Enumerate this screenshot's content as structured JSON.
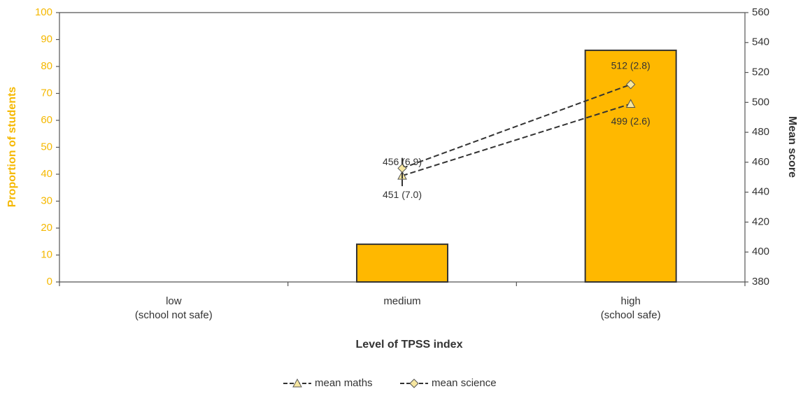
{
  "chart_data": {
    "type": "bar",
    "categories": [
      "low\n(school not safe)",
      "medium",
      "high\n(school safe)"
    ],
    "x_label": "Level of TPSS index",
    "y_label": "Proportion of students",
    "y2_label": "Mean score",
    "values": [
      null,
      14,
      86
    ],
    "color": "#ffb800",
    "axis_color": "#f5b800",
    "ylim": [
      0,
      100
    ],
    "yticks": [
      0,
      10,
      20,
      30,
      40,
      50,
      60,
      70,
      80,
      90,
      100
    ],
    "y2lim": [
      380,
      560
    ],
    "y2ticks": [
      380,
      400,
      420,
      440,
      460,
      480,
      500,
      520,
      540,
      560
    ],
    "series": [
      {
        "name": "mean maths",
        "type": "line",
        "axis": "y2",
        "marker": "triangle",
        "color": "#333333",
        "values": [
          null,
          451,
          499
        ],
        "errors": [
          null,
          7.0,
          2.6
        ],
        "value_labels": [
          null,
          "451 (7.0)",
          "499 (2.6)"
        ]
      },
      {
        "name": "mean science",
        "type": "line",
        "axis": "y2",
        "marker": "diamond",
        "color": "#333333",
        "values": [
          null,
          456,
          512
        ],
        "errors": [
          null,
          6.9,
          2.8
        ],
        "value_labels": [
          null,
          "456 (6.9)",
          "512 (2.8)"
        ]
      }
    ]
  }
}
